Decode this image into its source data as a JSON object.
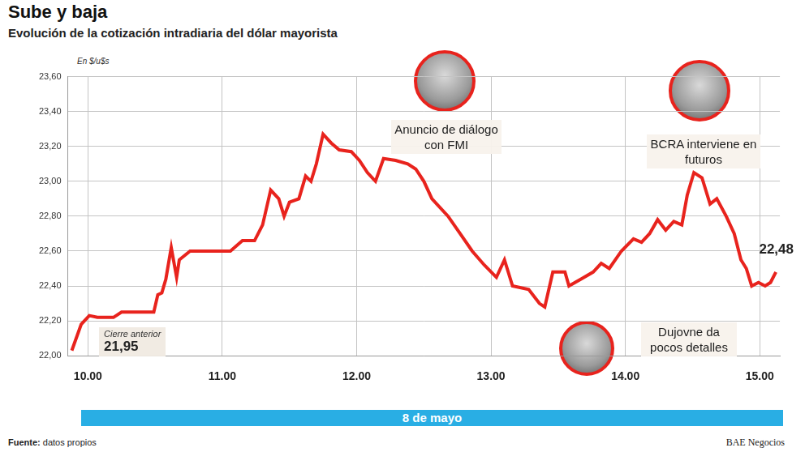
{
  "chart_data": {
    "type": "line",
    "title": "Sube y baja",
    "subtitle": "Evolución de la cotización intradiaria del dólar mayorista",
    "y_unit": "En $/u$s",
    "x": [
      9.88,
      9.95,
      10.01,
      10.07,
      10.19,
      10.25,
      10.4,
      10.49,
      10.52,
      10.55,
      10.58,
      10.62,
      10.66,
      10.68,
      10.76,
      10.91,
      11.06,
      11.15,
      11.24,
      11.3,
      11.36,
      11.42,
      11.46,
      11.5,
      11.57,
      11.62,
      11.66,
      11.7,
      11.75,
      11.81,
      11.87,
      11.96,
      12.02,
      12.08,
      12.14,
      12.2,
      12.29,
      12.38,
      12.44,
      12.5,
      12.56,
      12.68,
      12.77,
      12.86,
      12.95,
      13.04,
      13.1,
      13.16,
      13.28,
      13.36,
      13.4,
      13.46,
      13.55,
      13.58,
      13.67,
      13.76,
      13.82,
      13.88,
      13.97,
      14.06,
      14.12,
      14.18,
      14.24,
      14.3,
      14.36,
      14.42,
      14.46,
      14.51,
      14.57,
      14.63,
      14.68,
      14.75,
      14.81,
      14.86,
      14.9,
      14.94,
      14.99,
      15.04,
      15.08,
      15.12
    ],
    "values": [
      22.03,
      22.18,
      22.23,
      22.22,
      22.22,
      22.25,
      22.25,
      22.25,
      22.35,
      22.36,
      22.44,
      22.62,
      22.45,
      22.55,
      22.6,
      22.6,
      22.6,
      22.66,
      22.66,
      22.75,
      22.95,
      22.9,
      22.8,
      22.88,
      22.9,
      23.03,
      23.0,
      23.1,
      23.27,
      23.22,
      23.18,
      23.17,
      23.12,
      23.05,
      23.0,
      23.13,
      23.12,
      23.1,
      23.07,
      23.0,
      22.9,
      22.8,
      22.7,
      22.6,
      22.52,
      22.45,
      22.55,
      22.4,
      22.38,
      22.3,
      22.28,
      22.48,
      22.48,
      22.4,
      22.44,
      22.48,
      22.53,
      22.5,
      22.6,
      22.67,
      22.65,
      22.7,
      22.78,
      22.72,
      22.77,
      22.75,
      22.92,
      23.05,
      23.02,
      22.87,
      22.9,
      22.8,
      22.7,
      22.55,
      22.5,
      22.4,
      22.42,
      22.4,
      22.42,
      22.48
    ],
    "color": "#e8231d",
    "xlim": [
      9.85,
      15.15
    ],
    "xticks": [
      {
        "value": 10,
        "label": "10.00"
      },
      {
        "value": 11,
        "label": "11.00"
      },
      {
        "value": 12,
        "label": "12.00"
      },
      {
        "value": 13,
        "label": "13.00"
      },
      {
        "value": 14,
        "label": "14.00"
      },
      {
        "value": 15,
        "label": "15.00"
      }
    ],
    "ylim": [
      22,
      23.6
    ],
    "yticks": [
      {
        "value": 22,
        "label": "22,00"
      },
      {
        "value": 22.2,
        "label": "22,20"
      },
      {
        "value": 22.4,
        "label": "22,40"
      },
      {
        "value": 22.6,
        "label": "22,60"
      },
      {
        "value": 22.8,
        "label": "22,80"
      },
      {
        "value": 23,
        "label": "23,00"
      },
      {
        "value": 23.2,
        "label": "23,20"
      },
      {
        "value": 23.4,
        "label": "23,40"
      },
      {
        "value": 23.6,
        "label": "23,60"
      }
    ],
    "grid": true,
    "date": "8 de mayo",
    "annotations": [
      "Anuncio de diálogo con FMI",
      "BCRA interviene en futuros",
      "Dujovne da pocos detalles"
    ],
    "previous_close": {
      "text": "Cierre anterior",
      "value": 21.95,
      "label": "21,95"
    },
    "end_label": {
      "value": 22.48,
      "label": "22,48"
    },
    "source": {
      "label": "Fuente:",
      "text": "datos propios"
    },
    "publisher": "BAE Negocios"
  }
}
